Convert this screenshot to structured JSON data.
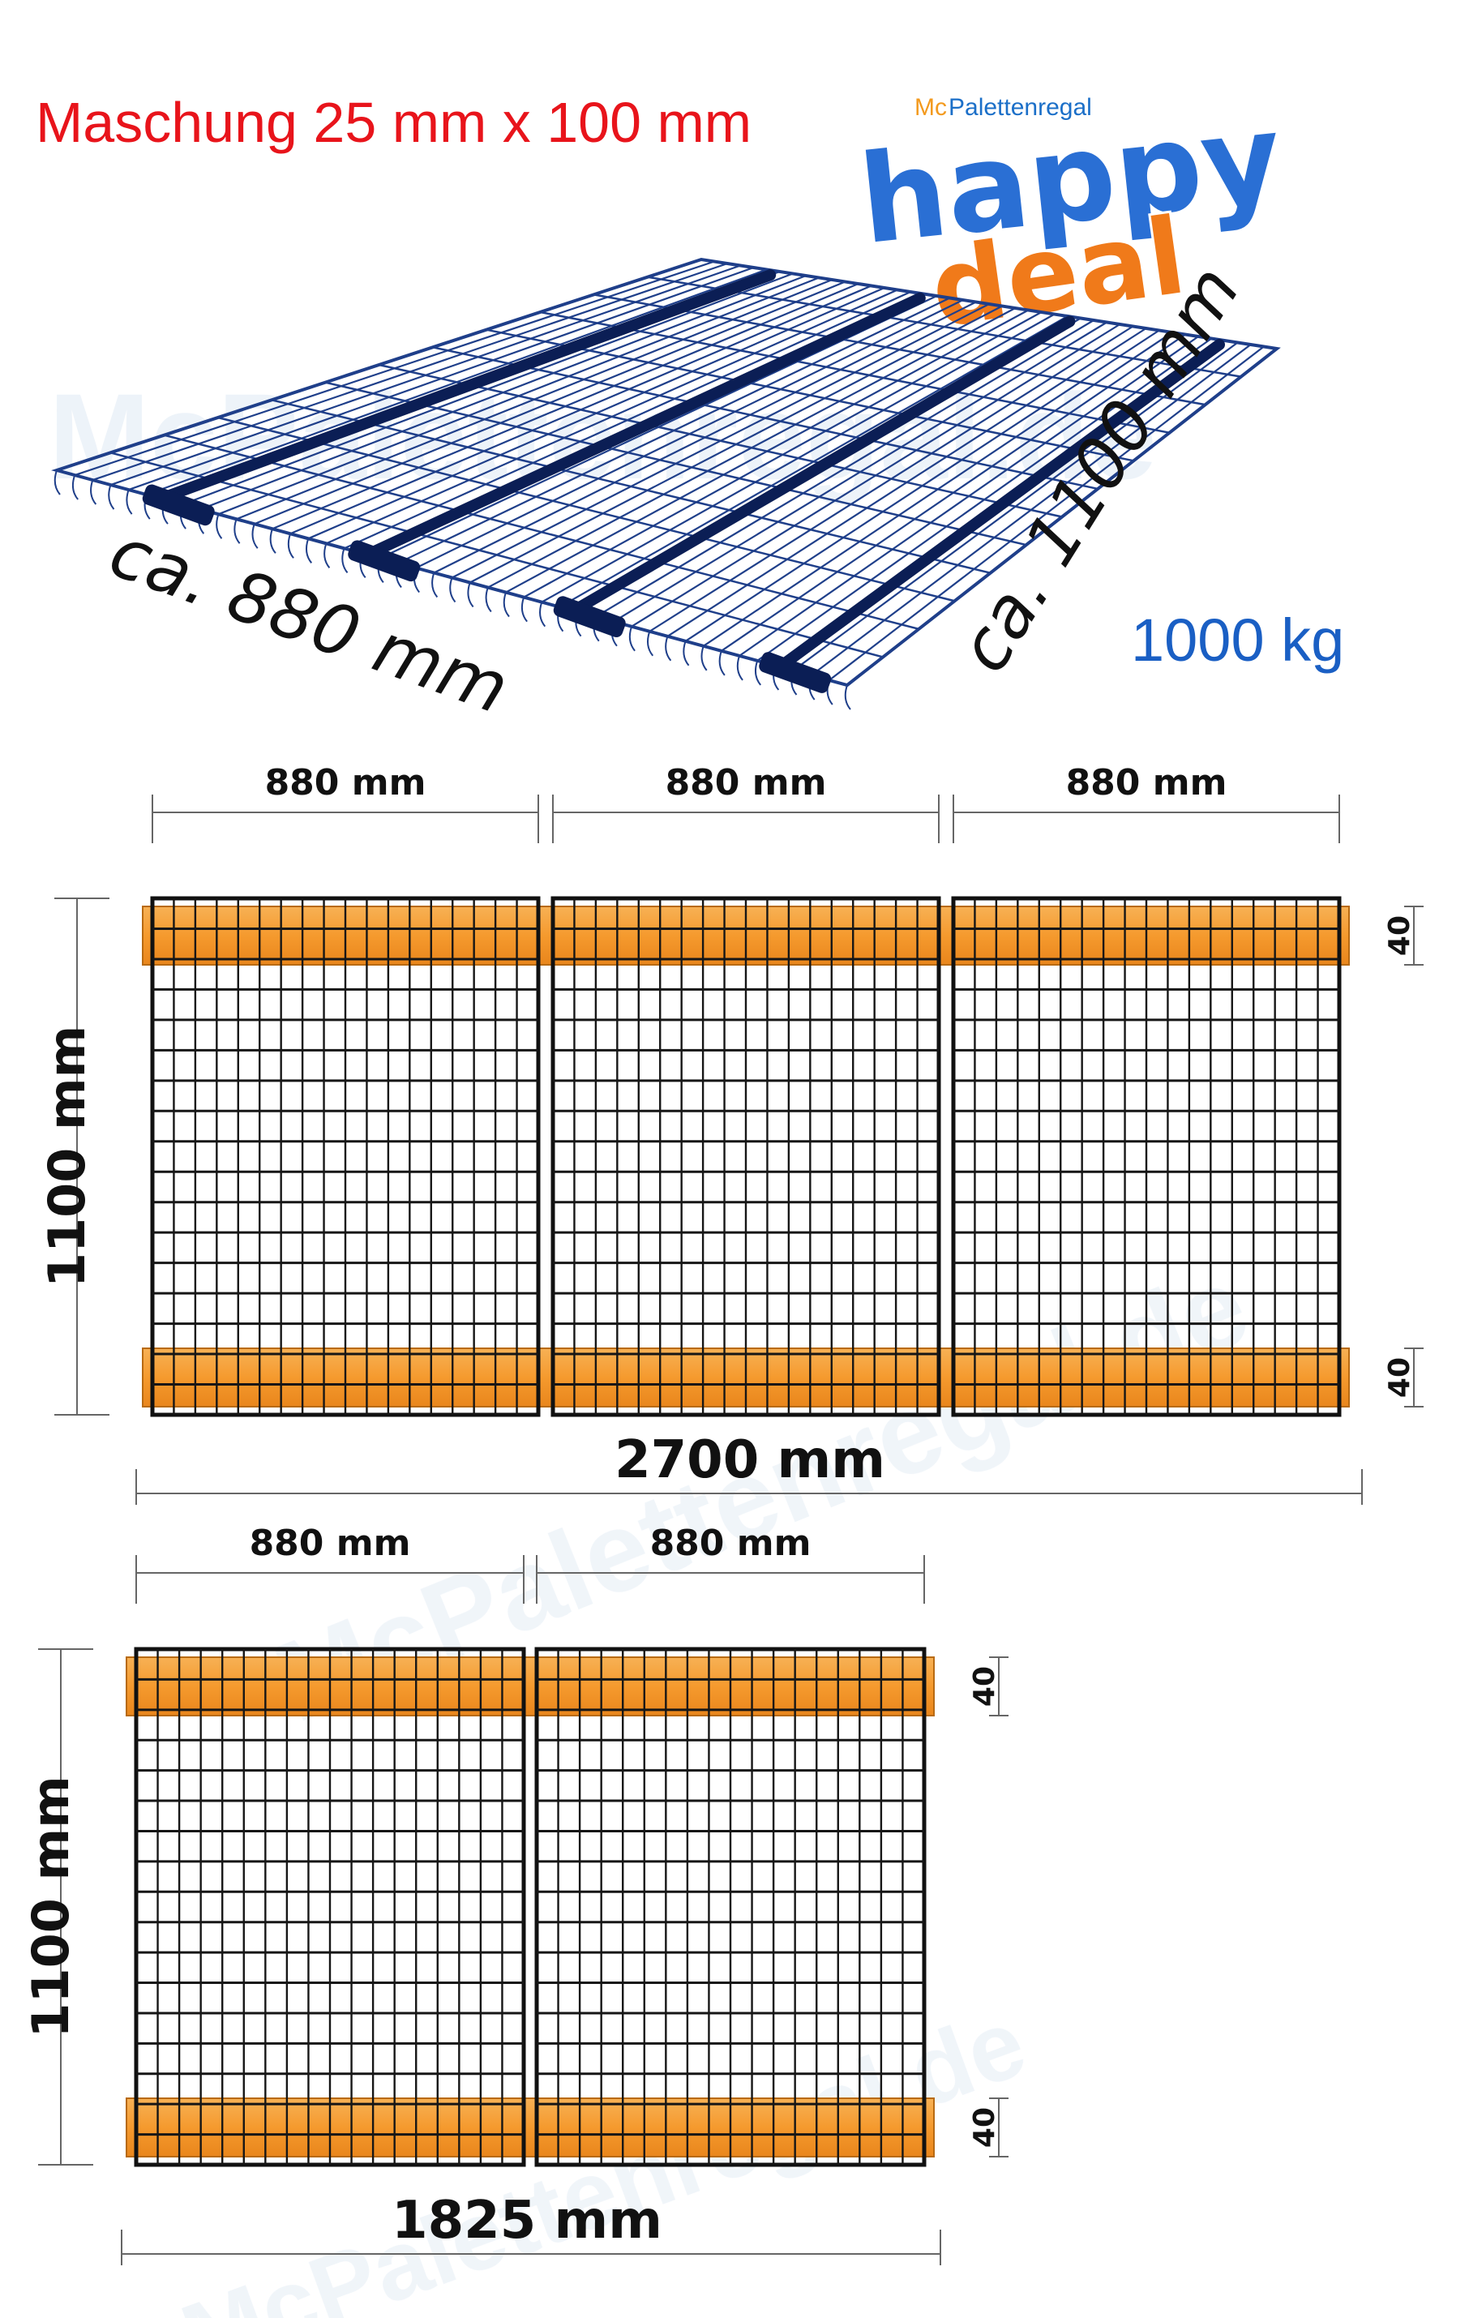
{
  "header": {
    "mesh_text": "Maschung 25 mm x 100 mm",
    "load_text": "1000 kg"
  },
  "logo": {
    "brand_prefix": "Mc",
    "brand_suffix": "Palettenregal",
    "word1": "happy",
    "word2": "deal"
  },
  "watermark": {
    "text": "McPalettenregal.de"
  },
  "iso_view": {
    "width_label": "ca. 880 mm",
    "depth_label": "ca. 1100 mm"
  },
  "layout_three": {
    "panel_width_label": "880 mm",
    "panel_depth_label": "1100 mm",
    "total_label": "2700 mm",
    "beam_label": "40",
    "panel_count": 3
  },
  "layout_two": {
    "panel_width_label": "880 mm",
    "panel_depth_label": "1100 mm",
    "total_label": "1825 mm",
    "beam_label": "40",
    "panel_count": 2
  },
  "colors": {
    "beam": "#f59a2e",
    "mesh_top": "#1f3f8a",
    "title": "#e8141b",
    "load": "#1a5fc4"
  },
  "icons": [
    "happy-deal-logo",
    "wire-mesh-panel"
  ]
}
